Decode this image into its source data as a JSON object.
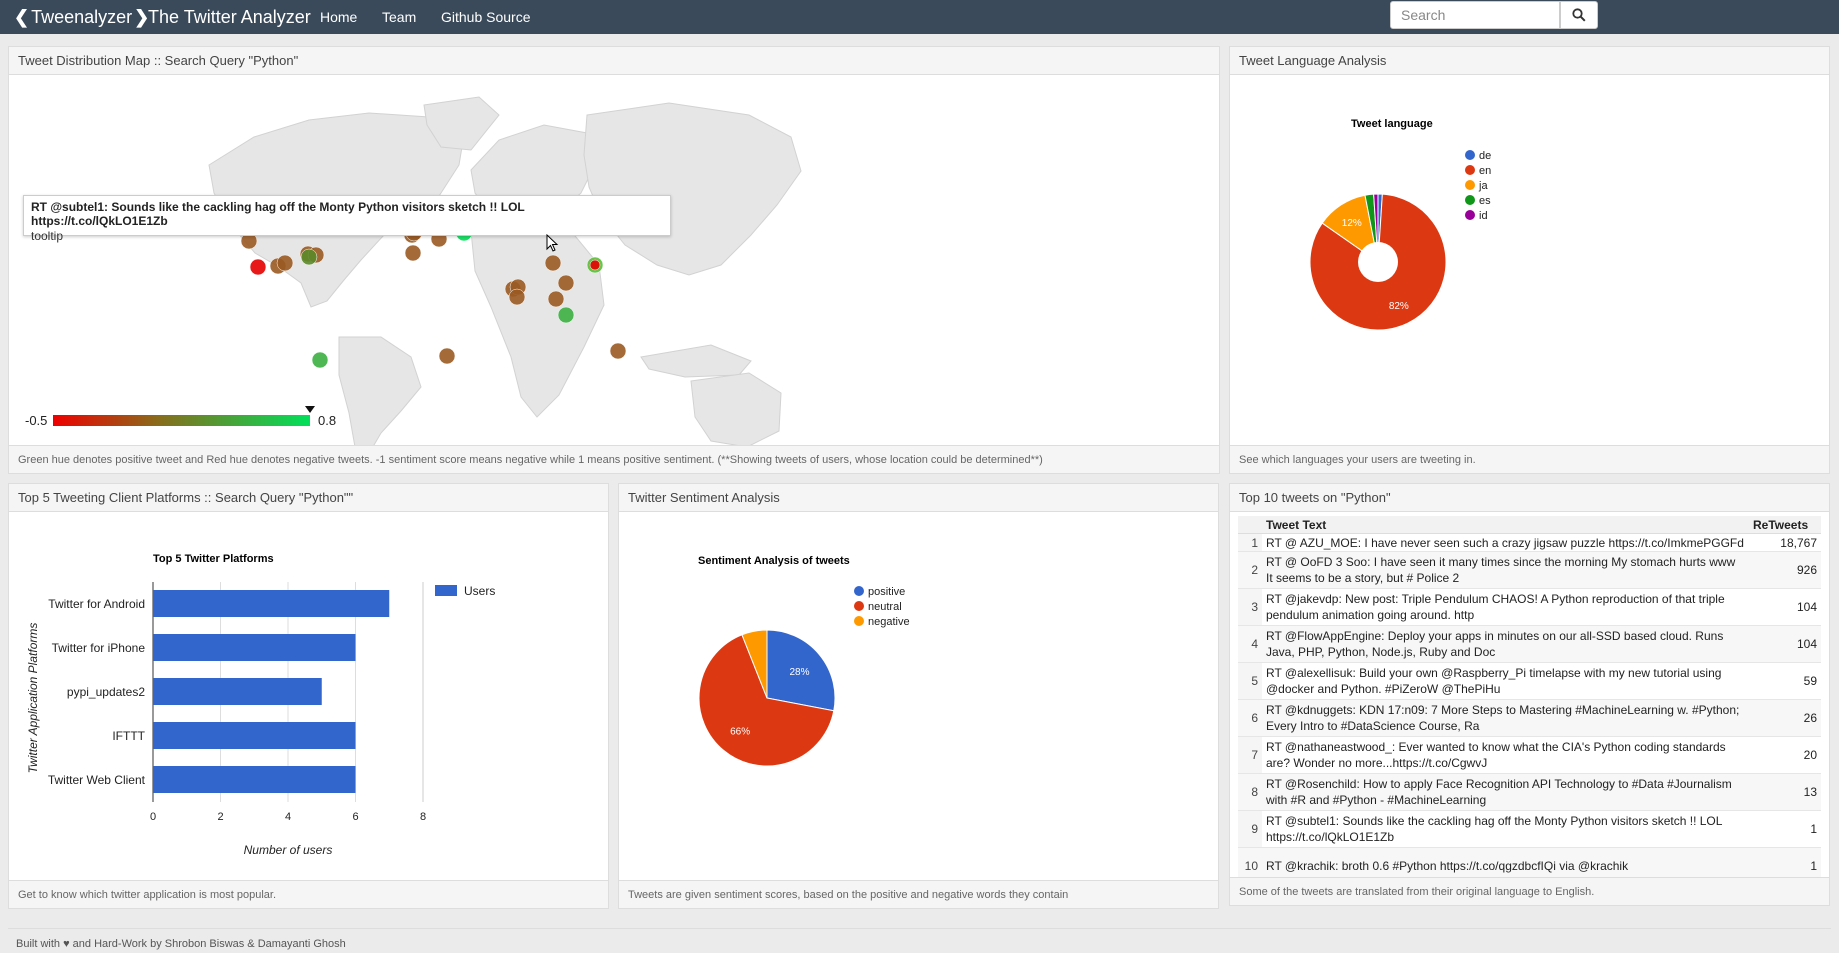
{
  "nav": {
    "brand": "Tweenalyzer",
    "app_title": "The Twitter Analyzer",
    "links": [
      "Home",
      "Team",
      "Github Source"
    ],
    "search_placeholder": "Search"
  },
  "map_panel": {
    "title": "Tweet Distribution Map :: Search Query \"Python\"",
    "tooltip_text": "RT @subtel1: Sounds like the cackling hag off the Monty Python visitors sketch !! LOL https://t.co/lQkLO1E1Zb",
    "tooltip_label": "tooltip",
    "scale_min": "-0.5",
    "scale_max": "0.8",
    "scale_marker_value": 0.8,
    "footer": "Green hue denotes positive tweet and Red hue denotes negative tweets. -1 sentiment score means negative while 1 means positive sentiment. (**Showing tweets of users, whose location could be determined**)"
  },
  "language_panel": {
    "title": "Tweet Language Analysis",
    "footer": "See which languages your users are tweeting in.",
    "chart_data": {
      "type": "pie",
      "title": "Tweet language",
      "categories": [
        "de",
        "en",
        "ja",
        "es",
        "id"
      ],
      "values": [
        1,
        82,
        12,
        2,
        1
      ],
      "data_labels": [
        "",
        "82%",
        "12%",
        "",
        ""
      ],
      "colors": [
        "#3366cc",
        "#dc3912",
        "#ff9900",
        "#109618",
        "#990099"
      ],
      "donut": true,
      "legend": "right"
    }
  },
  "platform_panel": {
    "title": "Top 5 Tweeting Client Platforms :: Search Query \"Python\"\"",
    "footer": "Get to know which twitter application is most popular.",
    "chart_data": {
      "type": "bar",
      "orientation": "horizontal",
      "title": "Top 5 Twitter Platforms",
      "categories": [
        "Twitter for Android",
        "Twitter for iPhone",
        "pypi_updates2",
        "IFTTT",
        "Twitter Web Client"
      ],
      "series": [
        {
          "name": "Users",
          "values": [
            7,
            6,
            5,
            6,
            6
          ]
        }
      ],
      "xlabel": "Number of users",
      "ylabel": "Twitter Application Platforms",
      "xlim": [
        0,
        8
      ],
      "xticks": [
        "0",
        "2",
        "4",
        "6",
        "8"
      ],
      "color": "#3366cc",
      "legend": "right"
    }
  },
  "sentiment_panel": {
    "title": "Twitter Sentiment Analysis",
    "footer": "Tweets are given sentiment scores, based on the positive and negative words they contain",
    "chart_data": {
      "type": "pie",
      "title": "Sentiment Analysis of tweets",
      "categories": [
        "positive",
        "neutral",
        "negative"
      ],
      "values": [
        28,
        66,
        6
      ],
      "data_labels": [
        "28%",
        "66%",
        ""
      ],
      "colors": [
        "#3366cc",
        "#dc3912",
        "#ff9900"
      ],
      "legend": "right"
    }
  },
  "top_tweets_panel": {
    "title": "Top 10 tweets on \"Python\"",
    "footer": "Some of the tweets are translated from their original language to English.",
    "columns": [
      "Tweet Text",
      "ReTweets"
    ],
    "rows": [
      {
        "n": "1",
        "text": "RT @ AZU_MOE: I have never seen such a crazy jigsaw puzzle https://t.co/ImkmePGGFd",
        "rt": "18,767"
      },
      {
        "n": "2",
        "text": "RT @ OoFD 3 Soo: I have seen it many times since the morning My stomach hurts www It seems to be a story, but # Police 2",
        "rt": "926"
      },
      {
        "n": "3",
        "text": "RT @jakevdp: New post: Triple Pendulum CHAOS! A Python reproduction of that triple pendulum animation going around. http",
        "rt": "104"
      },
      {
        "n": "4",
        "text": "RT @FlowAppEngine: Deploy your apps in minutes on our all-SSD based cloud. Runs Java, PHP, Python, Node.js, Ruby and Doc",
        "rt": "104"
      },
      {
        "n": "5",
        "text": "RT @alexellisuk: Build your own @Raspberry_Pi timelapse with my new tutorial using @docker and Python. #PiZeroW @ThePiHu",
        "rt": "59"
      },
      {
        "n": "6",
        "text": "RT @kdnuggets: KDN 17:n09: 7 More Steps to Mastering #MachineLearning w. #Python; Every Intro to #DataScience Course, Ra",
        "rt": "26"
      },
      {
        "n": "7",
        "text": "RT @nathaneastwood_: Ever wanted to know what the CIA's Python coding standards are? Wonder no more...https://t.co/CgwvJ",
        "rt": "20"
      },
      {
        "n": "8",
        "text": "RT @Rosenchild: How to apply Face Recognition API Technology to #Data #Journalism with #R and #Python - #MachineLearning",
        "rt": "13"
      },
      {
        "n": "9",
        "text": "RT @subtel1: Sounds like the cackling hag off the Monty Python visitors sketch !! LOL https://t.co/lQkLO1E1Zb",
        "rt": "1"
      },
      {
        "n": "10",
        "text": "RT @krachik: broth 0.6 #Python https://t.co/qgzdbcfIQi via @krachik",
        "rt": "1"
      }
    ]
  },
  "footer_text": "Built with ♥ and Hard-Work by Shrobon Biswas & Damayanti Ghosh"
}
